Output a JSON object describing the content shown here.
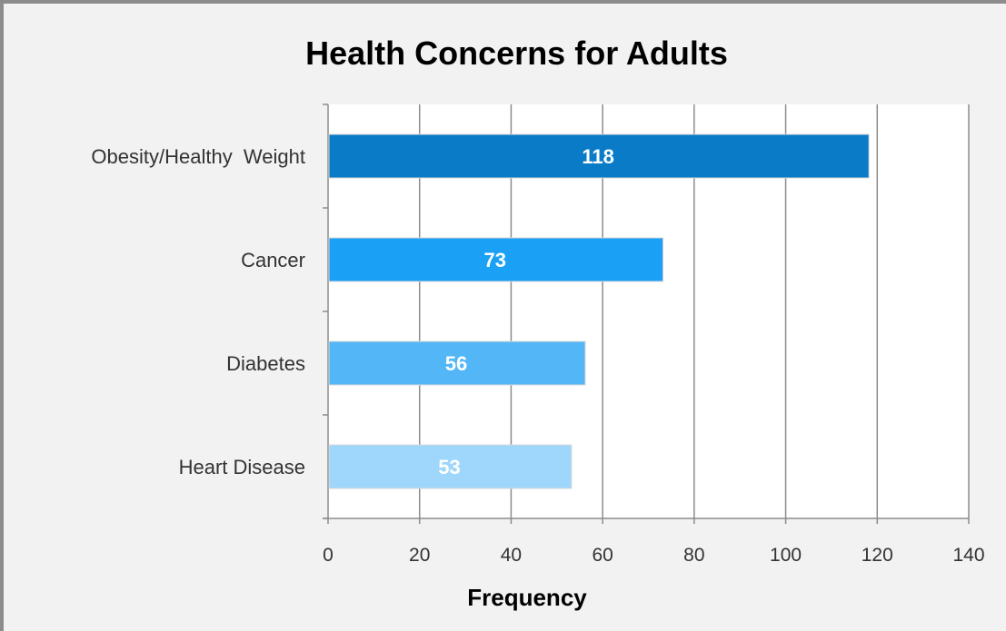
{
  "chart_data": {
    "type": "bar",
    "orientation": "horizontal",
    "title": "Health Concerns for Adults",
    "xlabel": "Frequency",
    "ylabel": "",
    "categories": [
      "Obesity/Healthy  Weight",
      "Cancer",
      "Diabetes",
      "Heart Disease"
    ],
    "values": [
      118,
      73,
      56,
      53
    ],
    "data_labels": [
      "118",
      "73",
      "56",
      "53"
    ],
    "bar_colors": [
      "#0a7bc7",
      "#1aa0f5",
      "#52b6f7",
      "#9ed6fc"
    ],
    "xlim": [
      0,
      140
    ],
    "xticks": [
      "0",
      "20",
      "40",
      "60",
      "80",
      "100",
      "120",
      "140"
    ],
    "grid": "vertical",
    "legend": "none"
  }
}
